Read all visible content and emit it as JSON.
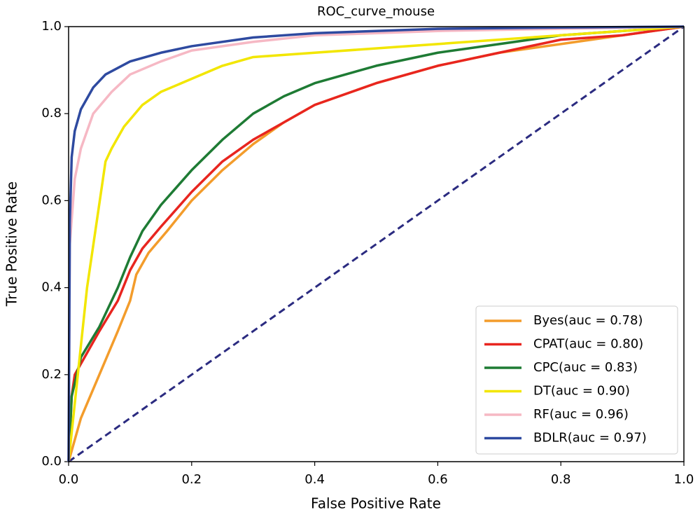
{
  "chart_data": {
    "type": "line",
    "title": "ROC_curve_mouse",
    "x_label": "False Positive Rate",
    "y_label": "True Positive Rate",
    "xlim": [
      0,
      1
    ],
    "ylim": [
      0,
      1
    ],
    "xticks": [
      {
        "value": 0,
        "label": "0.0"
      },
      0.2,
      0.4,
      0.6,
      0.8,
      {
        "value": 1,
        "label": "1.0"
      }
    ],
    "yticks": [
      {
        "value": 0,
        "label": "0.0"
      },
      0.2,
      0.4,
      0.6,
      0.8,
      {
        "value": 1,
        "label": "1.0"
      }
    ],
    "legend": "lower right",
    "grid": false,
    "series": [
      {
        "name": "Byes(auc = 0.78)",
        "color": "#f39c2b",
        "x": [
          0,
          0.02,
          0.05,
          0.08,
          0.1,
          0.11,
          0.13,
          0.16,
          0.2,
          0.25,
          0.3,
          0.35,
          0.4,
          0.5,
          0.6,
          0.7,
          0.8,
          0.9,
          1
        ],
        "values": [
          0,
          0.1,
          0.2,
          0.3,
          0.37,
          0.43,
          0.48,
          0.53,
          0.6,
          0.67,
          0.73,
          0.78,
          0.82,
          0.87,
          0.91,
          0.94,
          0.96,
          0.98,
          1
        ]
      },
      {
        "name": "CPAT(auc = 0.80)",
        "color": "#e8251f",
        "x": [
          0,
          0.005,
          0.01,
          0.03,
          0.05,
          0.08,
          0.1,
          0.12,
          0.15,
          0.2,
          0.25,
          0.3,
          0.35,
          0.4,
          0.5,
          0.6,
          0.7,
          0.8,
          0.9,
          1
        ],
        "values": [
          0,
          0.15,
          0.2,
          0.25,
          0.3,
          0.37,
          0.44,
          0.49,
          0.54,
          0.62,
          0.69,
          0.74,
          0.78,
          0.82,
          0.87,
          0.91,
          0.94,
          0.97,
          0.98,
          1
        ]
      },
      {
        "name": "CPC(auc = 0.83)",
        "color": "#1e7b34",
        "x": [
          0,
          0.005,
          0.02,
          0.05,
          0.08,
          0.1,
          0.12,
          0.15,
          0.2,
          0.25,
          0.3,
          0.35,
          0.4,
          0.5,
          0.6,
          0.7,
          0.8,
          0.9,
          1
        ],
        "values": [
          0,
          0.15,
          0.24,
          0.31,
          0.4,
          0.47,
          0.53,
          0.59,
          0.67,
          0.74,
          0.8,
          0.84,
          0.87,
          0.91,
          0.94,
          0.96,
          0.98,
          0.99,
          1
        ]
      },
      {
        "name": "DT(auc = 0.90)",
        "color": "#f2e600",
        "x": [
          0,
          0.03,
          0.06,
          0.07,
          0.09,
          0.12,
          0.15,
          0.2,
          0.25,
          0.3,
          0.4,
          0.6,
          0.8,
          1
        ],
        "values": [
          0,
          0.4,
          0.69,
          0.72,
          0.77,
          0.82,
          0.85,
          0.88,
          0.91,
          0.93,
          0.94,
          0.96,
          0.98,
          1
        ]
      },
      {
        "name": "RF(auc = 0.96)",
        "color": "#f6b8c4",
        "x": [
          0,
          0.002,
          0.01,
          0.02,
          0.04,
          0.07,
          0.1,
          0.15,
          0.2,
          0.3,
          0.4,
          0.6,
          0.8,
          1
        ],
        "values": [
          0,
          0.5,
          0.65,
          0.72,
          0.8,
          0.85,
          0.89,
          0.92,
          0.945,
          0.965,
          0.98,
          0.99,
          0.995,
          1
        ]
      },
      {
        "name": "BDLR(auc = 0.97)",
        "color": "#2e4aa0",
        "x": [
          0,
          0.002,
          0.005,
          0.01,
          0.02,
          0.04,
          0.06,
          0.1,
          0.15,
          0.2,
          0.3,
          0.4,
          0.6,
          0.8,
          1
        ],
        "values": [
          0,
          0.55,
          0.7,
          0.76,
          0.81,
          0.86,
          0.89,
          0.92,
          0.94,
          0.955,
          0.975,
          0.985,
          0.995,
          0.998,
          1
        ]
      }
    ]
  }
}
